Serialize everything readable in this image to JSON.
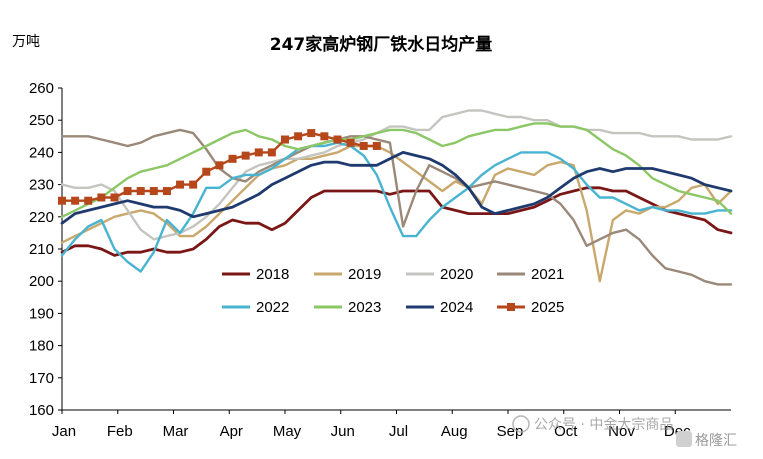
{
  "chart_data": {
    "type": "line",
    "title": "247家高炉钢厂铁水日均产量",
    "unit_label": "万吨",
    "xlabel": "",
    "ylabel": "",
    "x_tick_labels": [
      "Jan",
      "Feb",
      "Mar",
      "Apr",
      "May",
      "Jun",
      "Jul",
      "Aug",
      "Sep",
      "Oct",
      "Nov",
      "Dec"
    ],
    "xlim": [
      0,
      51
    ],
    "ylim": [
      160,
      260
    ],
    "y_ticks": [
      160,
      170,
      180,
      190,
      200,
      210,
      220,
      230,
      240,
      250,
      260
    ],
    "grid": false,
    "legend_placement": "center-left",
    "series": [
      {
        "name": "2018",
        "color": "#7b1616",
        "marker": false,
        "values": [
          209,
          211,
          211,
          210,
          208,
          209,
          209,
          210,
          209,
          209,
          210,
          213,
          217,
          219,
          218,
          218,
          216,
          218,
          222,
          226,
          228,
          228,
          228,
          228,
          228,
          227,
          228,
          228,
          228,
          223,
          222,
          221,
          221,
          221,
          221,
          222,
          223,
          225,
          227,
          228,
          229,
          229,
          228,
          228,
          226,
          224,
          222,
          221,
          220,
          219,
          216,
          215
        ]
      },
      {
        "name": "2019",
        "color": "#c9a86d",
        "marker": false,
        "values": [
          212,
          214,
          216,
          218,
          220,
          221,
          222,
          221,
          218,
          214,
          214,
          217,
          221,
          225,
          229,
          233,
          235,
          236,
          238,
          238,
          239,
          240,
          242,
          242,
          242,
          240,
          237,
          234,
          231,
          228,
          231,
          229,
          224,
          233,
          235,
          234,
          233,
          236,
          237,
          236,
          222,
          200,
          219,
          222,
          221,
          223,
          223,
          225,
          229,
          230,
          224,
          228
        ]
      },
      {
        "name": "2020",
        "color": "#c5c5c0",
        "marker": false,
        "values": [
          230,
          229,
          229,
          230,
          228,
          222,
          216,
          213,
          214,
          215,
          217,
          220,
          224,
          229,
          234,
          236,
          237,
          238,
          238,
          239,
          240,
          242,
          243,
          244,
          246,
          248,
          248,
          247,
          247,
          251,
          252,
          253,
          253,
          252,
          251,
          251,
          250,
          250,
          248,
          248,
          247,
          247,
          246,
          246,
          246,
          245,
          245,
          245,
          244,
          244,
          244,
          245
        ]
      },
      {
        "name": "2021",
        "color": "#9a8878",
        "marker": false,
        "values": [
          245,
          245,
          245,
          244,
          243,
          242,
          243,
          245,
          246,
          247,
          246,
          241,
          235,
          232,
          231,
          234,
          236,
          238,
          240,
          242,
          243,
          244,
          245,
          245,
          244,
          243,
          217,
          228,
          236,
          234,
          232,
          229,
          230,
          231,
          230,
          229,
          228,
          227,
          224,
          219,
          211,
          213,
          215,
          216,
          213,
          208,
          204,
          203,
          202,
          200,
          199,
          199
        ]
      },
      {
        "name": "2022",
        "color": "#49b4d1",
        "marker": false,
        "values": [
          208,
          213,
          217,
          219,
          210,
          206,
          203,
          209,
          219,
          215,
          221,
          229,
          229,
          232,
          233,
          233,
          235,
          238,
          241,
          242,
          242,
          243,
          242,
          239,
          233,
          223,
          214,
          214,
          219,
          223,
          226,
          229,
          233,
          236,
          238,
          240,
          240,
          240,
          238,
          235,
          230,
          226,
          226,
          224,
          222,
          223,
          222,
          222,
          221,
          221,
          222,
          222
        ]
      },
      {
        "name": "2023",
        "color": "#8cc765",
        "marker": false,
        "values": [
          220,
          222,
          224,
          226,
          229,
          232,
          234,
          235,
          236,
          238,
          240,
          242,
          244,
          246,
          247,
          245,
          244,
          242,
          241,
          242,
          243,
          244,
          244,
          245,
          246,
          247,
          247,
          246,
          244,
          242,
          243,
          245,
          246,
          247,
          247,
          248,
          249,
          249,
          248,
          248,
          247,
          244,
          241,
          239,
          236,
          232,
          230,
          228,
          227,
          226,
          225,
          221
        ]
      },
      {
        "name": "2024",
        "color": "#1f3a6e",
        "marker": false,
        "values": [
          218,
          221,
          222,
          223,
          224,
          225,
          224,
          223,
          223,
          222,
          220,
          221,
          222,
          223,
          225,
          227,
          230,
          232,
          234,
          236,
          237,
          237,
          236,
          236,
          236,
          238,
          240,
          239,
          238,
          236,
          233,
          229,
          223,
          221,
          222,
          223,
          224,
          226,
          229,
          232,
          234,
          235,
          234,
          235,
          235,
          235,
          234,
          233,
          232,
          230,
          229,
          228
        ]
      },
      {
        "name": "2025",
        "color": "#b5471b",
        "marker": true,
        "values": [
          225,
          225,
          225,
          226,
          226,
          228,
          228,
          228,
          228,
          230,
          230,
          234,
          236,
          238,
          239,
          240,
          240,
          244,
          245,
          246,
          245,
          244,
          243,
          242,
          242
        ]
      }
    ]
  },
  "watermark": {
    "text": "公众号 · 中金大宗商品"
  },
  "logo": {
    "text": "格隆汇"
  }
}
